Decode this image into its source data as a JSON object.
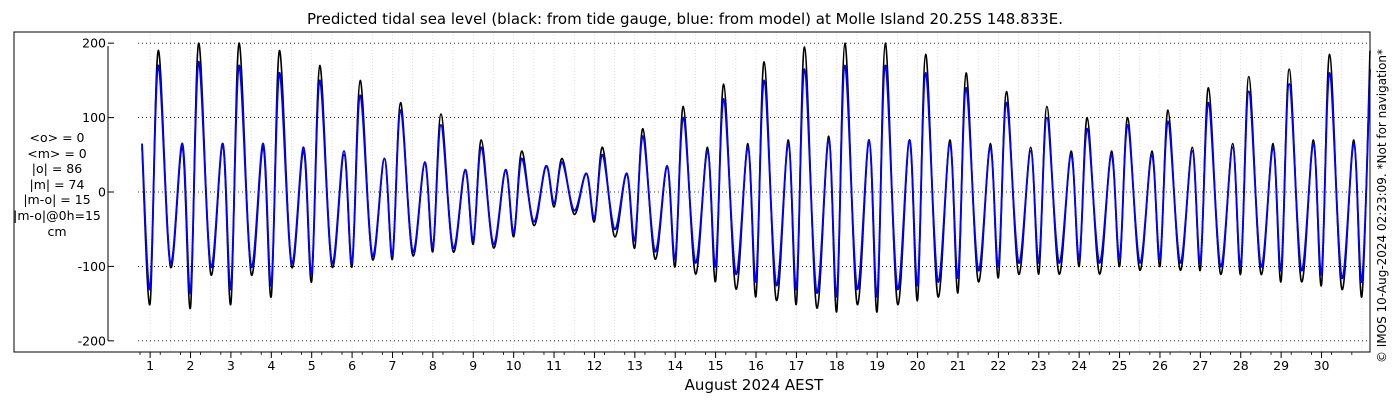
{
  "chart_data": {
    "type": "line",
    "title": "Predicted tidal sea level (black: from tide gauge, blue: from model) at Molle Island 20.25S 148.833E.",
    "xlabel": "August 2024 AEST",
    "ylabel": "",
    "unit": "cm",
    "xlim": [
      0.7,
      31.2
    ],
    "ylim": [
      -215,
      215
    ],
    "yticks": [
      -200,
      -100,
      0,
      100,
      200
    ],
    "xticks": [
      "1",
      "2",
      "3",
      "4",
      "5",
      "6",
      "7",
      "8",
      "9",
      "10",
      "11",
      "12",
      "13",
      "14",
      "15",
      "16",
      "17",
      "18",
      "19",
      "20",
      "21",
      "22",
      "23",
      "24",
      "25",
      "26",
      "27",
      "28",
      "29",
      "30"
    ],
    "grid": true,
    "stats": [
      "<o> = 0",
      "<m> = 0",
      "|o| = 86",
      "|m| = 74",
      "|m-o| = 15",
      "|m-o|@0h=15",
      "cm"
    ],
    "series": [
      {
        "color": "#000000",
        "x": [
          0.8,
          1.0,
          1.2,
          1.5,
          1.8,
          2.0,
          2.2,
          2.5,
          2.8,
          3.0,
          3.2,
          3.5,
          3.8,
          4.0,
          4.2,
          4.5,
          4.8,
          5.0,
          5.2,
          5.5,
          5.8,
          6.0,
          6.2,
          6.5,
          6.8,
          7.0,
          7.2,
          7.5,
          7.8,
          8.0,
          8.2,
          8.5,
          8.8,
          9.0,
          9.2,
          9.5,
          9.8,
          10.0,
          10.2,
          10.5,
          10.8,
          11.0,
          11.2,
          11.5,
          11.8,
          12.0,
          12.2,
          12.5,
          12.8,
          13.0,
          13.2,
          13.5,
          13.8,
          14.0,
          14.2,
          14.5,
          14.8,
          15.0,
          15.2,
          15.5,
          15.8,
          16.0,
          16.2,
          16.5,
          16.8,
          17.0,
          17.2,
          17.5,
          17.8,
          18.0,
          18.2,
          18.5,
          18.8,
          19.0,
          19.2,
          19.5,
          19.8,
          20.0,
          20.2,
          20.5,
          20.8,
          21.0,
          21.2,
          21.5,
          21.8,
          22.0,
          22.2,
          22.5,
          22.8,
          23.0,
          23.2,
          23.5,
          23.8,
          24.0,
          24.2,
          24.5,
          24.8,
          25.0,
          25.2,
          25.5,
          25.8,
          26.0,
          26.2,
          26.5,
          26.8,
          27.0,
          27.2,
          27.5,
          27.8,
          28.0,
          28.2,
          28.5,
          28.8,
          29.0,
          29.2,
          29.5,
          29.8,
          30.0,
          30.2,
          30.5,
          30.8,
          31.0,
          31.2
        ],
        "y": [
          60,
          -150,
          190,
          -100,
          60,
          -155,
          200,
          -110,
          65,
          -150,
          200,
          -110,
          60,
          -140,
          190,
          -100,
          55,
          -120,
          170,
          -100,
          50,
          -100,
          150,
          -90,
          45,
          -90,
          120,
          -85,
          40,
          -80,
          105,
          -80,
          30,
          -70,
          70,
          -75,
          30,
          -60,
          55,
          -45,
          35,
          -20,
          45,
          -30,
          25,
          -40,
          60,
          -60,
          25,
          -75,
          85,
          -90,
          35,
          -100,
          115,
          -110,
          60,
          -120,
          145,
          -130,
          65,
          -140,
          175,
          -145,
          70,
          -150,
          195,
          -155,
          75,
          -160,
          200,
          -150,
          70,
          -160,
          200,
          -150,
          70,
          -145,
          185,
          -140,
          70,
          -135,
          160,
          -120,
          65,
          -115,
          135,
          -110,
          60,
          -110,
          115,
          -110,
          55,
          -100,
          100,
          -110,
          55,
          -100,
          100,
          -105,
          55,
          -100,
          110,
          -105,
          60,
          -105,
          140,
          -110,
          65,
          -110,
          155,
          -110,
          65,
          -120,
          165,
          -120,
          70,
          -125,
          185,
          -130,
          70,
          -140,
          190
        ]
      },
      {
        "color": "#0000ff",
        "x": [
          0.8,
          1.0,
          1.2,
          1.5,
          1.8,
          2.0,
          2.2,
          2.5,
          2.8,
          3.0,
          3.2,
          3.5,
          3.8,
          4.0,
          4.2,
          4.5,
          4.8,
          5.0,
          5.2,
          5.5,
          5.8,
          6.0,
          6.2,
          6.5,
          6.8,
          7.0,
          7.2,
          7.5,
          7.8,
          8.0,
          8.2,
          8.5,
          8.8,
          9.0,
          9.2,
          9.5,
          9.8,
          10.0,
          10.2,
          10.5,
          10.8,
          11.0,
          11.2,
          11.5,
          11.8,
          12.0,
          12.2,
          12.5,
          12.8,
          13.0,
          13.2,
          13.5,
          13.8,
          14.0,
          14.2,
          14.5,
          14.8,
          15.0,
          15.2,
          15.5,
          15.8,
          16.0,
          16.2,
          16.5,
          16.8,
          17.0,
          17.2,
          17.5,
          17.8,
          18.0,
          18.2,
          18.5,
          18.8,
          19.0,
          19.2,
          19.5,
          19.8,
          20.0,
          20.2,
          20.5,
          20.8,
          21.0,
          21.2,
          21.5,
          21.8,
          22.0,
          22.2,
          22.5,
          22.8,
          23.0,
          23.2,
          23.5,
          23.8,
          24.0,
          24.2,
          24.5,
          24.8,
          25.0,
          25.2,
          25.5,
          25.8,
          26.0,
          26.2,
          26.5,
          26.8,
          27.0,
          27.2,
          27.5,
          27.8,
          28.0,
          28.2,
          28.5,
          28.8,
          29.0,
          29.2,
          29.5,
          29.8,
          30.0,
          30.2,
          30.5,
          30.8,
          31.0,
          31.2
        ],
        "y": [
          65,
          -130,
          170,
          -95,
          65,
          -135,
          175,
          -100,
          65,
          -130,
          170,
          -100,
          65,
          -125,
          160,
          -95,
          60,
          -110,
          150,
          -95,
          55,
          -95,
          130,
          -85,
          45,
          -85,
          110,
          -80,
          40,
          -75,
          90,
          -75,
          30,
          -65,
          60,
          -70,
          30,
          -55,
          45,
          -40,
          35,
          -15,
          40,
          -25,
          25,
          -35,
          50,
          -50,
          25,
          -65,
          75,
          -80,
          35,
          -90,
          100,
          -95,
          55,
          -100,
          125,
          -110,
          60,
          -120,
          150,
          -125,
          65,
          -130,
          165,
          -135,
          70,
          -140,
          170,
          -130,
          70,
          -140,
          170,
          -130,
          70,
          -125,
          160,
          -120,
          65,
          -115,
          140,
          -105,
          60,
          -100,
          120,
          -95,
          55,
          -95,
          100,
          -95,
          50,
          -90,
          85,
          -95,
          50,
          -90,
          90,
          -95,
          50,
          -90,
          95,
          -95,
          55,
          -95,
          120,
          -100,
          60,
          -100,
          135,
          -100,
          60,
          -105,
          145,
          -105,
          65,
          -110,
          160,
          -115,
          65,
          -120,
          165
        ]
      }
    ]
  }
}
